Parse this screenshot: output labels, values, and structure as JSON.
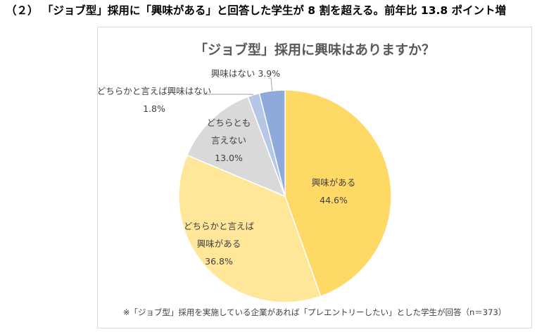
{
  "heading": "（２） 「ジョブ型」採用に「興味がある」と回答した学生が 8 割を超える。前年比 13.8 ポイント増",
  "chart_data": {
    "type": "pie",
    "title": "「ジョブ型」採用に興味はありますか？",
    "note": "※「ジョブ型」採用を実施している企業があれば「プレエントリーしたい」とした学生が回答（n＝373）",
    "slices": [
      {
        "label": "興味がある",
        "value": 44.6,
        "value_text": "44.6%",
        "color": "#FFD966"
      },
      {
        "label": "どちらかと言えば興味がある",
        "label_lines": [
          "どちらかと言えば",
          "興味がある"
        ],
        "value": 36.8,
        "value_text": "36.8%",
        "color": "#FFE699"
      },
      {
        "label": "どちらとも言えない",
        "label_lines": [
          "どちらとも",
          "言えない"
        ],
        "value": 13.0,
        "value_text": "13.0%",
        "color": "#D9D9D9"
      },
      {
        "label": "どちらかと言えば興味はない",
        "value": 1.8,
        "value_text": "1.8%",
        "color": "#B4C7E7"
      },
      {
        "label": "興味はない",
        "value": 3.9,
        "value_text": "3.9%",
        "color": "#8EA9DB"
      }
    ]
  }
}
